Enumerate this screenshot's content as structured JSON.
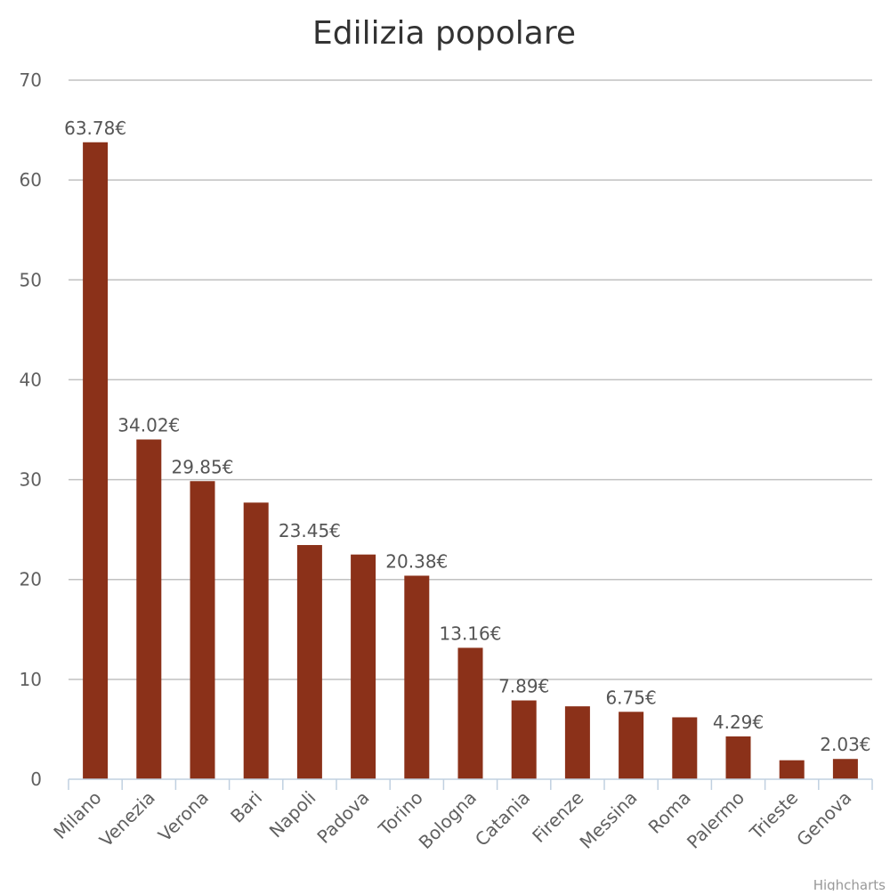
{
  "chart_data": {
    "type": "bar",
    "title": "Edilizia popolare",
    "xlabel": "",
    "ylabel": "",
    "ylim": [
      0,
      70
    ],
    "yticks": [
      0,
      10,
      20,
      30,
      40,
      50,
      60,
      70
    ],
    "grid": true,
    "legend": "none",
    "bar_color": "#8b3119",
    "categories": [
      "Milano",
      "Venezia",
      "Verona",
      "Bari",
      "Napoli",
      "Padova",
      "Torino",
      "Bologna",
      "Catania",
      "Firenze",
      "Messina",
      "Roma",
      "Palermo",
      "Trieste",
      "Genova"
    ],
    "values": [
      63.78,
      34.02,
      29.85,
      27.7,
      23.45,
      22.5,
      20.38,
      13.16,
      7.89,
      7.3,
      6.75,
      6.2,
      4.29,
      1.9,
      2.03
    ],
    "data_labels": [
      "63.78€",
      "34.02€",
      "29.85€",
      "",
      "23.45€",
      "",
      "20.38€",
      "13.16€",
      "7.89€",
      "",
      "6.75€",
      "",
      "4.29€",
      "",
      "2.03€"
    ]
  },
  "credits": "Highcharts"
}
